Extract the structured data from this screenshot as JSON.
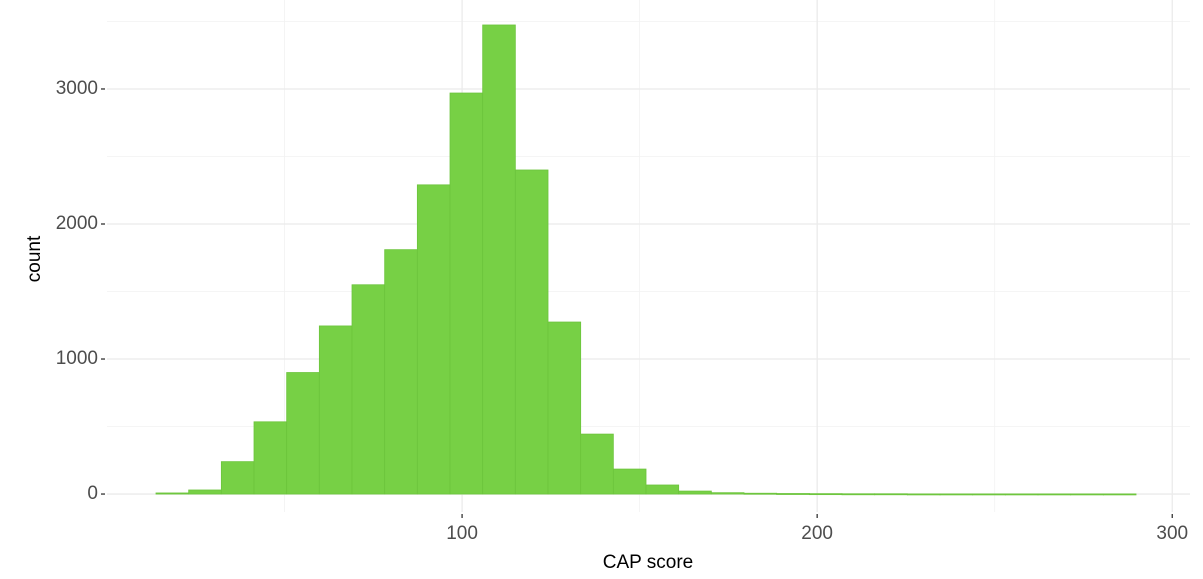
{
  "chart_data": {
    "type": "histogram",
    "x_label": "CAP score",
    "y_label": "count",
    "bins": [
      13.8,
      23,
      32.2,
      41.4,
      50.6,
      59.8,
      69,
      78.2,
      87.4,
      96.6,
      105.8,
      115,
      124.2,
      133.4,
      142.6,
      151.8,
      161,
      170.2,
      179.4,
      188.6,
      197.8,
      207,
      216.2,
      225.4,
      234.6,
      243.8,
      253,
      262.2,
      271.4,
      280.6,
      289.8
    ],
    "values": [
      8,
      30,
      240,
      535,
      900,
      1245,
      1550,
      1810,
      2290,
      2970,
      3474,
      2400,
      1274,
      444,
      185,
      67,
      22,
      10,
      6,
      4,
      3,
      2,
      2,
      1,
      1,
      1,
      1,
      1,
      1,
      1
    ],
    "color": "#77d045",
    "edge_color": "#6cc43c",
    "xlim": [
      0,
      305
    ],
    "ylim": [
      -133,
      3659
    ],
    "xticks": [
      100,
      200,
      300
    ],
    "yticks": [
      0,
      1000,
      2000,
      3000
    ],
    "minor_xticks": [
      50,
      150,
      250
    ],
    "minor_yticks": [
      500,
      1500,
      2500,
      3500
    ],
    "grid": true
  }
}
